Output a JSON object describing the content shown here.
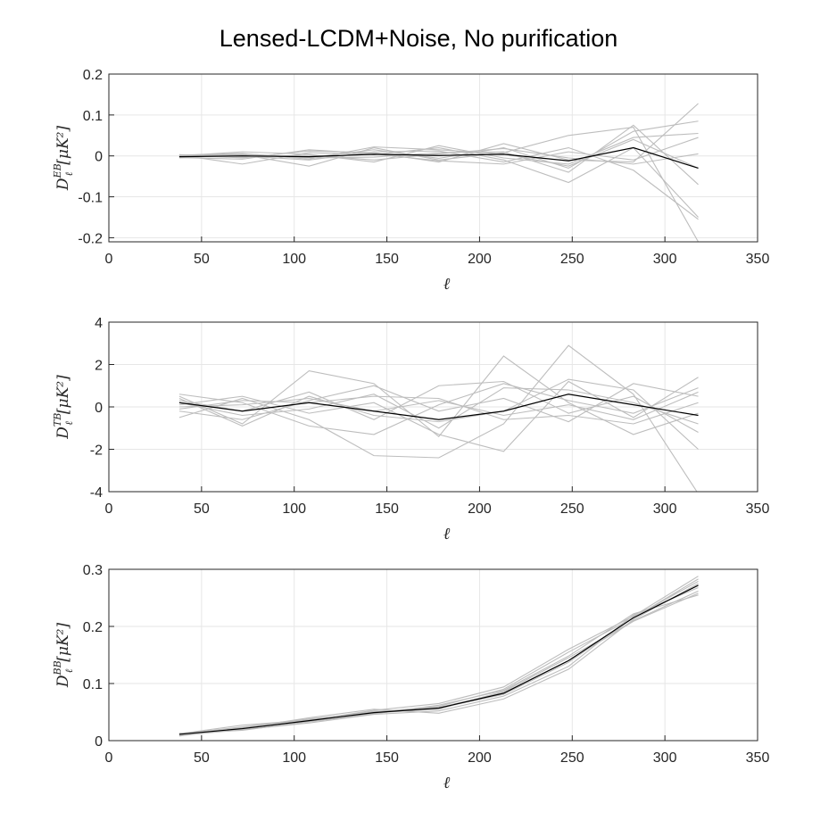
{
  "figure": {
    "title": "Lensed-LCDM+Noise, No purification",
    "colors": {
      "realization": "#bdbdbd",
      "mean": "#000000",
      "grid": "#e6e6e6",
      "axis": "#262626"
    }
  },
  "chart_data": [
    {
      "type": "line",
      "panel": "EB",
      "xlabel": "ℓ",
      "ylabel": {
        "base": "D",
        "sup": "EB",
        "sub": "ℓ",
        "unit": "[μK²]"
      },
      "xlim": [
        0,
        350
      ],
      "ylim": [
        -0.21,
        0.2
      ],
      "xticks": [
        0,
        50,
        100,
        150,
        200,
        250,
        300,
        350
      ],
      "xtick_labels": [
        "0",
        "50",
        "100",
        "150",
        "200",
        "250",
        "300",
        "350"
      ],
      "yticks": [
        -0.2,
        -0.1,
        0,
        0.1,
        0.2
      ],
      "ytick_labels": [
        "-0.2",
        "-0.1",
        "0",
        "0.1",
        "0.2"
      ],
      "grid": true,
      "x": [
        38,
        72,
        108,
        143,
        178,
        213,
        248,
        283,
        318
      ],
      "realizations": [
        [
          -0.003,
          0.005,
          -0.004,
          0.015,
          -0.006,
          0.02,
          -0.03,
          0.06,
          0.085
        ],
        [
          0.002,
          -0.02,
          0.008,
          0.003,
          0.02,
          -0.01,
          -0.065,
          0.02,
          -0.15
        ],
        [
          -0.005,
          0.003,
          -0.025,
          0.02,
          -0.01,
          0.008,
          0.05,
          0.07,
          -0.21
        ],
        [
          0.0,
          0.01,
          0.004,
          -0.015,
          0.025,
          -0.005,
          -0.02,
          0.045,
          0.055
        ],
        [
          0.003,
          -0.005,
          0.012,
          0.008,
          -0.015,
          0.03,
          -0.01,
          -0.015,
          0.128
        ],
        [
          -0.002,
          0.0,
          -0.01,
          0.01,
          0.012,
          -0.015,
          0.02,
          -0.035,
          -0.155
        ],
        [
          0.001,
          0.004,
          -0.005,
          -0.003,
          0.008,
          0.01,
          -0.04,
          0.075,
          -0.07
        ],
        [
          -0.004,
          -0.008,
          0.015,
          0.005,
          -0.012,
          -0.02,
          0.01,
          -0.01,
          0.045
        ],
        [
          0.002,
          0.006,
          -0.008,
          0.022,
          0.015,
          0.005,
          -0.025,
          0.04,
          -0.03
        ],
        [
          -0.001,
          -0.003,
          0.002,
          -0.01,
          0.005,
          0.018,
          -0.005,
          -0.02,
          0.005
        ]
      ],
      "mean": [
        -0.002,
        0.0,
        -0.002,
        0.004,
        0.001,
        0.004,
        -0.012,
        0.02,
        -0.03
      ]
    },
    {
      "type": "line",
      "panel": "TB",
      "xlabel": "ℓ",
      "ylabel": {
        "base": "D",
        "sup": "TB",
        "sub": "ℓ",
        "unit": "[μK²]"
      },
      "xlim": [
        0,
        350
      ],
      "ylim": [
        -4,
        4
      ],
      "xticks": [
        0,
        50,
        100,
        150,
        200,
        250,
        300,
        350
      ],
      "xtick_labels": [
        "0",
        "50",
        "100",
        "150",
        "200",
        "250",
        "300",
        "350"
      ],
      "yticks": [
        -4,
        -2,
        0,
        2,
        4
      ],
      "ytick_labels": [
        "-4",
        "-2",
        "0",
        "2",
        "4"
      ],
      "grid": true,
      "x": [
        38,
        72,
        108,
        143,
        178,
        213,
        248,
        283,
        318
      ],
      "realizations": [
        [
          0.5,
          -0.8,
          1.7,
          1.1,
          -1.4,
          2.4,
          0.2,
          -1.3,
          -0.3
        ],
        [
          -0.5,
          0.4,
          -0.6,
          -2.3,
          -2.4,
          -0.8,
          2.9,
          0.6,
          -4.1
        ],
        [
          0.3,
          -0.2,
          0.7,
          -0.6,
          1.0,
          1.2,
          -0.3,
          0.5,
          -1.2
        ],
        [
          0.1,
          0.5,
          -0.3,
          0.2,
          -1.3,
          -2.1,
          1.2,
          -0.5,
          1.4
        ],
        [
          -0.2,
          -0.6,
          0.3,
          1.0,
          -0.2,
          0.4,
          -0.7,
          1.1,
          0.5
        ],
        [
          0.6,
          0.2,
          -0.9,
          -1.3,
          0.1,
          1.1,
          0.3,
          -0.3,
          0.9
        ],
        [
          0.4,
          -0.9,
          0.5,
          -0.4,
          -0.7,
          -0.2,
          1.3,
          0.8,
          -2.0
        ],
        [
          -0.1,
          0.3,
          0.2,
          0.5,
          0.4,
          -0.6,
          -0.4,
          -0.8,
          0.2
        ],
        [
          0.2,
          -0.4,
          -0.1,
          0.6,
          -1.0,
          0.9,
          0.8,
          0.2,
          -0.8
        ],
        [
          0.0,
          0.1,
          0.4,
          -0.2,
          0.3,
          -0.4,
          0.1,
          -0.6,
          0.7
        ]
      ],
      "mean": [
        0.2,
        -0.2,
        0.2,
        -0.2,
        -0.6,
        -0.2,
        0.6,
        0.1,
        -0.4
      ]
    },
    {
      "type": "line",
      "panel": "BB",
      "xlabel": "ℓ",
      "ylabel": {
        "base": "D",
        "sup": "BB",
        "sub": "ℓ",
        "unit": "[μK²]"
      },
      "xlim": [
        0,
        350
      ],
      "ylim": [
        0,
        0.3
      ],
      "xticks": [
        0,
        50,
        100,
        150,
        200,
        250,
        300,
        350
      ],
      "xtick_labels": [
        "0",
        "50",
        "100",
        "150",
        "200",
        "250",
        "300",
        "350"
      ],
      "yticks": [
        0,
        0.1,
        0.2,
        0.3
      ],
      "ytick_labels": [
        "0",
        "0.1",
        "0.2",
        "0.3"
      ],
      "grid": true,
      "x": [
        38,
        72,
        108,
        143,
        178,
        213,
        248,
        283,
        318
      ],
      "realizations": [
        [
          0.011,
          0.024,
          0.038,
          0.05,
          0.06,
          0.09,
          0.155,
          0.215,
          0.283
        ],
        [
          0.009,
          0.019,
          0.031,
          0.046,
          0.052,
          0.078,
          0.13,
          0.22,
          0.268
        ],
        [
          0.012,
          0.027,
          0.036,
          0.053,
          0.065,
          0.094,
          0.16,
          0.218,
          0.288
        ],
        [
          0.01,
          0.02,
          0.035,
          0.048,
          0.058,
          0.084,
          0.14,
          0.209,
          0.258
        ],
        [
          0.008,
          0.022,
          0.04,
          0.055,
          0.048,
          0.073,
          0.125,
          0.212,
          0.275
        ],
        [
          0.013,
          0.018,
          0.033,
          0.047,
          0.062,
          0.088,
          0.148,
          0.222,
          0.255
        ],
        [
          0.011,
          0.023,
          0.037,
          0.051,
          0.057,
          0.081,
          0.137,
          0.216,
          0.279
        ],
        [
          0.009,
          0.021,
          0.034,
          0.049,
          0.055,
          0.086,
          0.145,
          0.21,
          0.262
        ]
      ],
      "mean": [
        0.011,
        0.021,
        0.035,
        0.049,
        0.057,
        0.083,
        0.14,
        0.215,
        0.272
      ]
    }
  ]
}
